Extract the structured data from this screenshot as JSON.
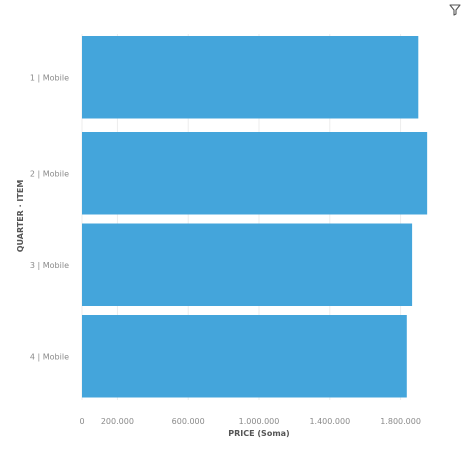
{
  "chart_data": {
    "type": "bar",
    "orientation": "horizontal",
    "categories": [
      "1 | Mobile",
      "2 | Mobile",
      "3 | Mobile",
      "4 | Mobile"
    ],
    "series": [
      {
        "values": [
          1900000,
          1950000,
          1865000,
          1835000
        ]
      }
    ],
    "xlabel": "PRICE (Soma)",
    "ylabel": "QUARTER · ITEM",
    "x_ticks": [
      {
        "value": 0,
        "label": "0"
      },
      {
        "value": 200000,
        "label": "200.000"
      },
      {
        "value": 600000,
        "label": "600.000"
      },
      {
        "value": 1000000,
        "label": "1.000.000"
      },
      {
        "value": 1400000,
        "label": "1.400.000"
      },
      {
        "value": 1800000,
        "label": "1.800.000"
      }
    ],
    "xlim": [
      0,
      2000000
    ],
    "grid": true,
    "bar_color": "#44a5db",
    "grid_color": "#ededed"
  },
  "toolbar": {
    "filter_icon": "filter-icon"
  }
}
